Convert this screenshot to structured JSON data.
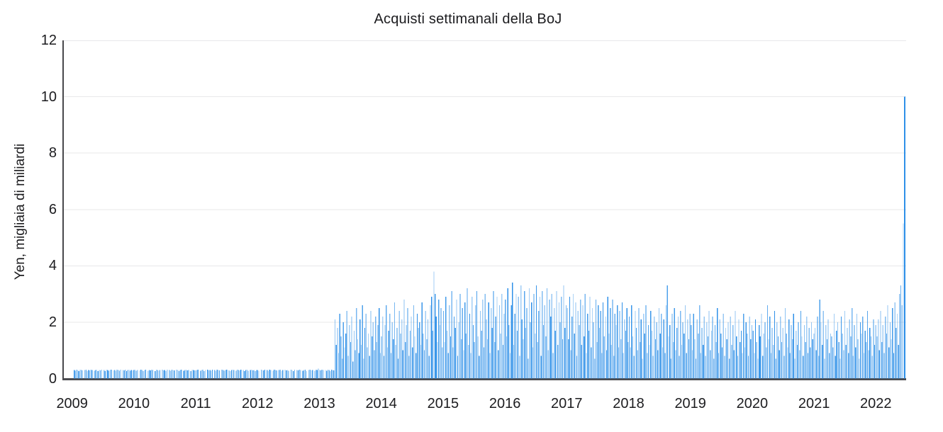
{
  "chart_data": {
    "type": "bar",
    "title": "Acquisti settimanali della BoJ",
    "xlabel": "",
    "ylabel": "Yen, migliaia di miliardi",
    "unit": "trillions of yen, weekly BoJ purchases",
    "ylim": [
      0,
      12
    ],
    "yticks": [
      0,
      2,
      4,
      6,
      8,
      10,
      12
    ],
    "xticks": [
      2009,
      2010,
      2011,
      2012,
      2013,
      2014,
      2015,
      2016,
      2017,
      2018,
      2019,
      2020,
      2021,
      2022
    ],
    "x_start": "early 2009",
    "x_end": "mid 2022",
    "grid": "horizontal light gray lines at each y tick",
    "legend": "none",
    "bar_color": "#2F90E8",
    "axis_color": "#4c4c4f",
    "grid_color": "#e8e8ea",
    "points": 698,
    "values": [
      0.3,
      0.28,
      0.31,
      0.3,
      0.26,
      0.32,
      0.3,
      0.29,
      0,
      0.3,
      0.31,
      0.27,
      0.3,
      0.29,
      0.32,
      0.3,
      0,
      0.28,
      0.3,
      0.31,
      0.26,
      0.3,
      0.29,
      0.32,
      0,
      0.3,
      0.27,
      0.31,
      0.3,
      0.28,
      0.3,
      0.32,
      0,
      0.29,
      0.3,
      0.26,
      0.31,
      0.3,
      0.28,
      0.32,
      0,
      0.3,
      0.29,
      0.31,
      0.27,
      0.3,
      0.32,
      0.28,
      0.3,
      0.29,
      0.3,
      0.31,
      0.28,
      0.3,
      0,
      0.29,
      0.32,
      0.3,
      0.27,
      0.3,
      0.31,
      0,
      0.28,
      0.3,
      0.29,
      0.32,
      0.3,
      0,
      0.26,
      0.31,
      0.3,
      0.28,
      0.3,
      0,
      0.32,
      0.29,
      0.3,
      0.27,
      0.31,
      0,
      0.3,
      0.28,
      0.32,
      0.3,
      0.29,
      0,
      0.31,
      0.3,
      0.26,
      0.3,
      0.32,
      0,
      0.28,
      0.3,
      0.31,
      0.29,
      0.3,
      0,
      0.27,
      0.32,
      0.3,
      0.29,
      0.29,
      0.3,
      0.32,
      0,
      0.28,
      0.3,
      0.31,
      0.27,
      0.3,
      0,
      0.32,
      0.29,
      0.3,
      0.28,
      0.31,
      0,
      0.3,
      0.26,
      0.32,
      0.3,
      0.29,
      0,
      0.31,
      0.3,
      0.28,
      0.3,
      0.32,
      0,
      0.29,
      0.27,
      0.3,
      0.31,
      0.3,
      0,
      0.28,
      0.32,
      0.3,
      0.29,
      0.31,
      0,
      0.3,
      0.27,
      0.3,
      0.32,
      0.28,
      0,
      0.3,
      0.31,
      0.29,
      0.3,
      0.26,
      0.3,
      0.3,
      0.28,
      0,
      0.31,
      0.3,
      0.29,
      0.32,
      0,
      0.3,
      0.27,
      0.31,
      0.3,
      0,
      0.28,
      0.32,
      0.3,
      0.29,
      0,
      0.3,
      0.31,
      0.26,
      0.3,
      0,
      0.32,
      0.29,
      0.3,
      0.28,
      0,
      0.31,
      0.3,
      0.27,
      0.32,
      0,
      0.3,
      0.29,
      0.31,
      0.3,
      0,
      0.28,
      0.3,
      0.32,
      0.26,
      0,
      0.3,
      0.31,
      0.29,
      0.3,
      0,
      0.28,
      0.32,
      0.3,
      0.35,
      0.3,
      0.29,
      0.31,
      0.3,
      0,
      0.3,
      0.28,
      0.32,
      0.3,
      0.27,
      0.31,
      0.3,
      0.29,
      2.1,
      1.2,
      1.8,
      0.9,
      2.3,
      1.5,
      0.7,
      2.0,
      1.1,
      1.6,
      2.4,
      0.8,
      1.9,
      1.3,
      2.2,
      0.6,
      1.7,
      1.0,
      2.5,
      1.4,
      0.9,
      2.1,
      1.2,
      2.6,
      0.7,
      1.8,
      2.3,
      1.1,
      1.6,
      0.8,
      2.4,
      1.5,
      2.0,
      1.0,
      2.2,
      1.3,
      1.9,
      2.5,
      0.9,
      1.5,
      2.2,
      0.8,
      1.9,
      2.6,
      1.1,
      1.7,
      2.3,
      0.9,
      2.0,
      1.4,
      2.7,
      1.2,
      1.8,
      0.7,
      2.4,
      1.6,
      2.1,
      1.0,
      2.8,
      1.3,
      1.9,
      2.5,
      0.8,
      1.7,
      2.2,
      1.1,
      2.6,
      1.5,
      0.9,
      2.3,
      1.8,
      2.0,
      1.2,
      2.7,
      1.6,
      1.0,
      2.4,
      1.4,
      2.1,
      0.8,
      2.6,
      2.9,
      1.7,
      3.8,
      3.0,
      2.2,
      1.3,
      2.8,
      1.9,
      2.5,
      1.1,
      2.4,
      1.3,
      2.9,
      1.7,
      0.9,
      2.6,
      1.5,
      3.1,
      1.1,
      2.2,
      1.8,
      2.8,
      0.8,
      2.0,
      3.0,
      1.4,
      2.5,
      1.0,
      2.7,
      1.6,
      3.2,
      1.2,
      2.3,
      0.9,
      2.9,
      1.9,
      1.3,
      2.6,
      3.1,
      1.5,
      0.8,
      2.4,
      1.7,
      2.8,
      1.1,
      3.0,
      2.1,
      1.4,
      2.7,
      0.9,
      2.5,
      1.8,
      3.1,
      1.3,
      2.2,
      2.9,
      1.0,
      2.6,
      1.6,
      3.0,
      1.2,
      2.3,
      2.8,
      1.5,
      3.2,
      1.9,
      0.9,
      2.6,
      3.4,
      1.2,
      2.3,
      3.0,
      1.7,
      2.9,
      0.8,
      3.3,
      2.1,
      1.4,
      3.1,
      1.8,
      2.5,
      0.7,
      3.2,
      2.0,
      2.7,
      1.1,
      3.0,
      1.6,
      3.3,
      1.3,
      2.4,
      2.9,
      0.8,
      3.1,
      1.9,
      2.6,
      1.5,
      3.2,
      1.0,
      2.8,
      2.2,
      3.0,
      0.9,
      2.5,
      1.7,
      3.1,
      1.2,
      2.7,
      2.0,
      2.9,
      1.4,
      3.3,
      1.8,
      2.6,
      2.5,
      1.4,
      2.9,
      1.0,
      2.2,
      3.0,
      1.6,
      2.7,
      0.8,
      2.4,
      1.9,
      2.8,
      1.2,
      2.6,
      1.5,
      3.0,
      0.9,
      2.3,
      1.7,
      2.9,
      1.1,
      2.5,
      2.0,
      0.7,
      2.8,
      1.3,
      2.6,
      1.8,
      2.4,
      0.9,
      2.7,
      1.5,
      2.2,
      1.0,
      2.9,
      1.6,
      2.5,
      1.2,
      2.8,
      0.8,
      2.3,
      1.9,
      2.6,
      1.1,
      2.4,
      1.4,
      2.7,
      0.9,
      2.1,
      1.7,
      2.5,
      1.3,
      2.2,
      1.1,
      2.6,
      1.5,
      0.8,
      2.4,
      1.8,
      1.0,
      2.5,
      1.3,
      2.1,
      0.7,
      2.3,
      1.6,
      2.6,
      0.9,
      1.9,
      1.2,
      2.4,
      1.7,
      0.8,
      2.2,
      1.4,
      2.0,
      1.0,
      2.5,
      1.6,
      2.3,
      1.1,
      2.1,
      0.9,
      2.6,
      3.3,
      1.5,
      1.9,
      0.7,
      2.3,
      1.3,
      2.5,
      1.0,
      1.8,
      2.2,
      0.8,
      2.4,
      1.2,
      2.0,
      1.6,
      2.6,
      0.9,
      2.1,
      1.4,
      2.3,
      1.9,
      1.0,
      2.3,
      1.4,
      0.7,
      2.1,
      1.6,
      2.6,
      0.9,
      1.8,
      1.2,
      2.2,
      0.8,
      2.0,
      1.5,
      2.4,
      1.0,
      1.7,
      2.2,
      0.7,
      1.9,
      1.3,
      2.5,
      0.9,
      2.1,
      1.6,
      1.1,
      2.3,
      0.8,
      1.8,
      1.4,
      2.0,
      0.7,
      2.2,
      1.2,
      1.9,
      1.0,
      2.4,
      1.5,
      0.8,
      2.1,
      1.3,
      1.7,
      0.9,
      2.3,
      1.1,
      2.0,
      1.6,
      0.8,
      2.2,
      1.4,
      1.9,
      1.7,
      0.9,
      2.1,
      1.3,
      0.7,
      1.9,
      1.5,
      2.3,
      0.8,
      1.6,
      2.0,
      1.1,
      2.6,
      1.4,
      2.2,
      0.9,
      1.8,
      1.2,
      2.4,
      0.7,
      2.0,
      1.5,
      1.0,
      2.2,
      1.3,
      1.8,
      0.8,
      2.5,
      1.6,
      1.1,
      2.1,
      0.9,
      1.9,
      1.4,
      2.3,
      0.7,
      1.7,
      1.2,
      2.0,
      1.0,
      2.4,
      1.5,
      0.8,
      1.9,
      1.3,
      2.2,
      0.9,
      1.8,
      1.1,
      2.0,
      1.4,
      1.6,
      1.8,
      1.0,
      2.2,
      0.8,
      2.8,
      2.0,
      1.2,
      2.4,
      0.7,
      1.9,
      1.4,
      2.1,
      0.9,
      1.6,
      1.5,
      1.1,
      2.3,
      0.8,
      1.7,
      2.0,
      1.3,
      0.7,
      2.2,
      1.6,
      1.0,
      2.4,
      1.2,
      1.8,
      0.9,
      2.1,
      1.5,
      2.5,
      0.8,
      1.9,
      1.1,
      2.3,
      1.4,
      0.7,
      2.0,
      1.6,
      2.2,
      0.9,
      1.7,
      1.3,
      2.4,
      1.0,
      1.8,
      1.5,
      0.8,
      2.1,
      1.2,
      1.9,
      1.5,
      2.1,
      1.0,
      2.4,
      1.3,
      1.9,
      0.9,
      2.2,
      1.6,
      2.6,
      1.1,
      2.0,
      1.4,
      2.5,
      0.9,
      2.7,
      1.8,
      2.3,
      1.2,
      3.0,
      3.3,
      2.6,
      5.5,
      10.0
    ]
  }
}
